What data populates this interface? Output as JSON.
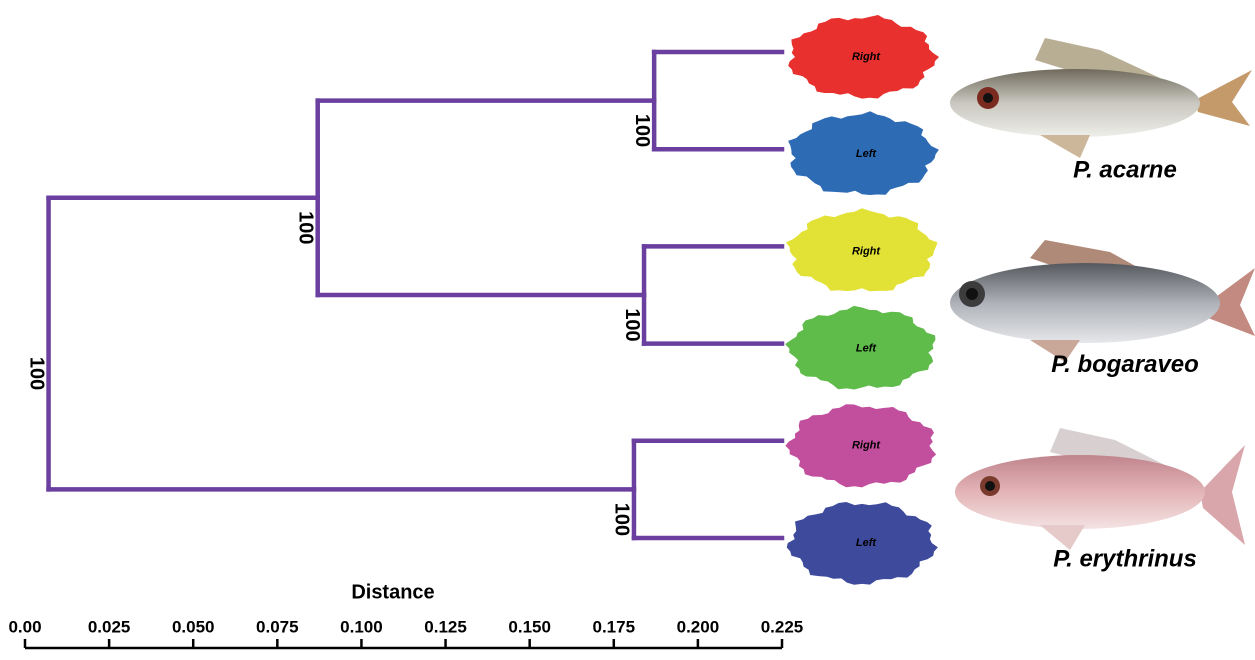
{
  "chart_data": {
    "type": "dendrogram",
    "xlabel": "Distance",
    "xlim": [
      0,
      0.225
    ],
    "xticks": [
      {
        "value": 0,
        "label": "0.00"
      },
      0.025,
      {
        "value": 0.05,
        "label": "0.050"
      },
      0.075,
      {
        "value": 0.1,
        "label": "0.100"
      },
      0.125,
      {
        "value": 0.15,
        "label": "0.150"
      },
      0.175,
      {
        "value": 0.2,
        "label": "0.200"
      },
      0.225
    ],
    "color": "#6a3fa0",
    "tree": {
      "distance": 0.007,
      "support": 100,
      "children": [
        {
          "distance": 0.087,
          "support": 100,
          "children": [
            {
              "distance": 0.187,
              "support": 100,
              "children": [
                {
                  "label": "Right",
                  "color": "#e8312f",
                  "distance": 0.225
                },
                {
                  "label": "Left",
                  "color": "#2e6bb5",
                  "distance": 0.225
                }
              ]
            },
            {
              "distance": 0.184,
              "support": 100,
              "children": [
                {
                  "label": "Right",
                  "color": "#e2e236",
                  "distance": 0.225
                },
                {
                  "label": "Left",
                  "color": "#5fbb4a",
                  "distance": 0.225
                }
              ]
            }
          ]
        },
        {
          "distance": 0.181,
          "support": 100,
          "children": [
            {
              "label": "Right",
              "color": "#c24f9e",
              "distance": 0.225
            },
            {
              "label": "Left",
              "color": "#3e4a9c",
              "distance": 0.225
            }
          ]
        }
      ]
    },
    "species": [
      "P. acarne",
      "P. bogaraveo",
      "P. erythrinus"
    ]
  }
}
